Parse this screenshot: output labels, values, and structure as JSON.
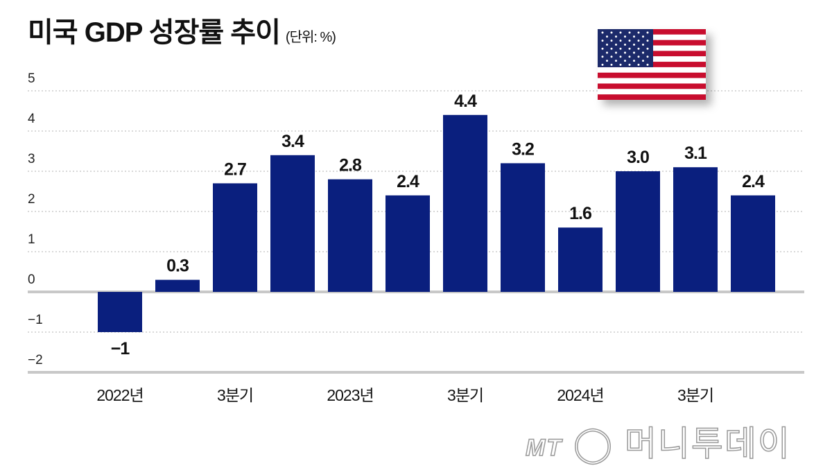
{
  "chart_data": {
    "type": "bar",
    "title": "미국 GDP 성장률 추이",
    "unit": "(단위: %)",
    "categories": [
      "2022년",
      "",
      "3분기",
      "",
      "2023년",
      "",
      "3분기",
      "",
      "2024년",
      "",
      "3분기",
      ""
    ],
    "values": [
      -1,
      0.3,
      2.7,
      3.4,
      2.8,
      2.4,
      4.4,
      3.2,
      1.6,
      3.0,
      3.1,
      2.4
    ],
    "data_labels": [
      "−1",
      "0.3",
      "2.7",
      "3.4",
      "2.8",
      "2.4",
      "4.4",
      "3.2",
      "1.6",
      "3.0",
      "3.1",
      "2.4"
    ],
    "yticks": [
      "5",
      "4",
      "3",
      "2",
      "1",
      "0",
      "−1",
      "−2"
    ],
    "ylim": [
      -2,
      5
    ],
    "grid": true,
    "bar_color": "#0a1f7e",
    "xlabel": "",
    "ylabel": ""
  },
  "decor": {
    "flag": "us-flag-icon",
    "watermark": {
      "brand": "MT",
      "name": "머니투데이"
    }
  }
}
